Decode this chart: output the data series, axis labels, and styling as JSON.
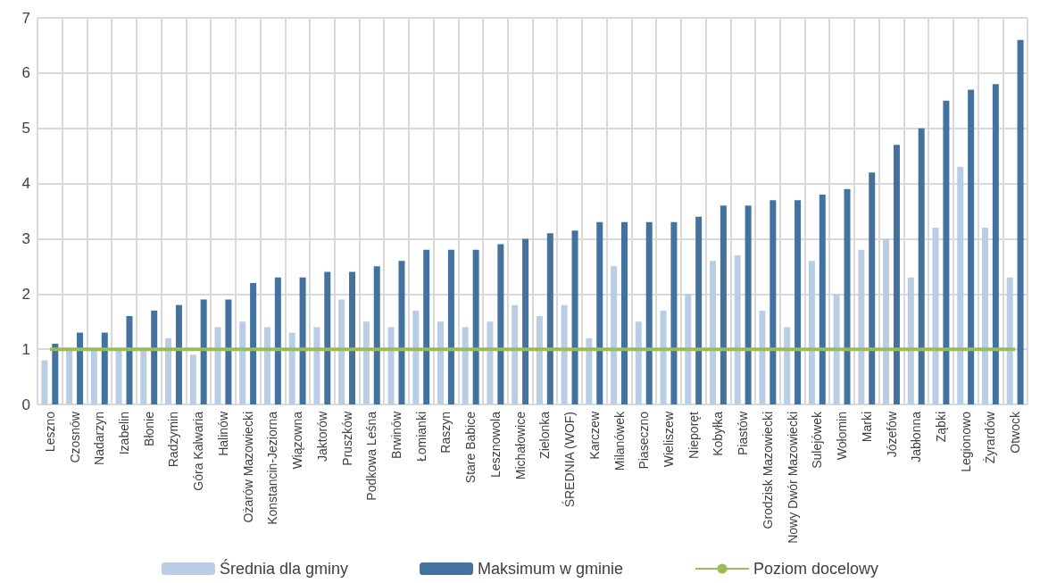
{
  "chart_data": {
    "type": "bar",
    "categories": [
      "Leszno",
      "Czosnów",
      "Nadarzyn",
      "Izabelin",
      "Błonie",
      "Radzymin",
      "Góra Kalwaria",
      "Halinów",
      "Ożarów Mazowiecki",
      "Konstancin-Jeziorna",
      "Wiązowna",
      "Jaktorów",
      "Pruszków",
      "Podkowa Leśna",
      "Brwinów",
      "Łomianki",
      "Raszyn",
      "Stare Babice",
      "Lesznowola",
      "Michałowice",
      "Zielonka",
      "ŚREDNIA (WOF)",
      "Karczew",
      "Milanówek",
      "Piaseczno",
      "Wieliszew",
      "Nieporęt",
      "Kobyłka",
      "Piastów",
      "Grodzisk Mazowiecki",
      "Nowy Dwór Mazowiecki",
      "Sulejówek",
      "Wołomin",
      "Marki",
      "Józefów",
      "Jabłonna",
      "Ząbki",
      "Legionowo",
      "Żyrardów",
      "Otwock"
    ],
    "series": [
      {
        "name": "Średnia dla gminy",
        "color": "#b9cde5",
        "values": [
          0.8,
          1.0,
          1.0,
          1.0,
          1.0,
          1.2,
          0.9,
          1.4,
          1.5,
          1.4,
          1.3,
          1.4,
          1.9,
          1.5,
          1.4,
          1.7,
          1.5,
          1.4,
          1.5,
          1.8,
          1.6,
          1.8,
          1.2,
          2.5,
          1.5,
          1.7,
          2.0,
          2.6,
          2.7,
          1.7,
          1.4,
          2.6,
          2.0,
          2.8,
          3.0,
          2.3,
          3.2,
          4.3,
          3.2,
          2.3
        ]
      },
      {
        "name": "Maksimum w gminie",
        "color": "#44729e",
        "values": [
          1.1,
          1.3,
          1.3,
          1.6,
          1.7,
          1.8,
          1.9,
          1.9,
          2.2,
          2.3,
          2.3,
          2.4,
          2.4,
          2.5,
          2.6,
          2.8,
          2.8,
          2.8,
          2.9,
          3.0,
          3.1,
          3.15,
          3.3,
          3.3,
          3.3,
          3.3,
          3.4,
          3.6,
          3.6,
          3.7,
          3.7,
          3.8,
          3.9,
          4.2,
          4.7,
          5.0,
          5.5,
          5.7,
          5.8,
          6.6
        ]
      },
      {
        "name": "Poziom docelowy",
        "type": "line",
        "color": "#9bbb59",
        "values": [
          1,
          1,
          1,
          1,
          1,
          1,
          1,
          1,
          1,
          1,
          1,
          1,
          1,
          1,
          1,
          1,
          1,
          1,
          1,
          1,
          1,
          1,
          1,
          1,
          1,
          1,
          1,
          1,
          1,
          1,
          1,
          1,
          1,
          1,
          1,
          1,
          1,
          1,
          1,
          1
        ]
      }
    ],
    "ylim": [
      0,
      7
    ],
    "yticks": [
      0,
      1,
      2,
      3,
      4,
      5,
      6,
      7
    ],
    "grid": true,
    "legend": "bottom",
    "marker": "none"
  }
}
